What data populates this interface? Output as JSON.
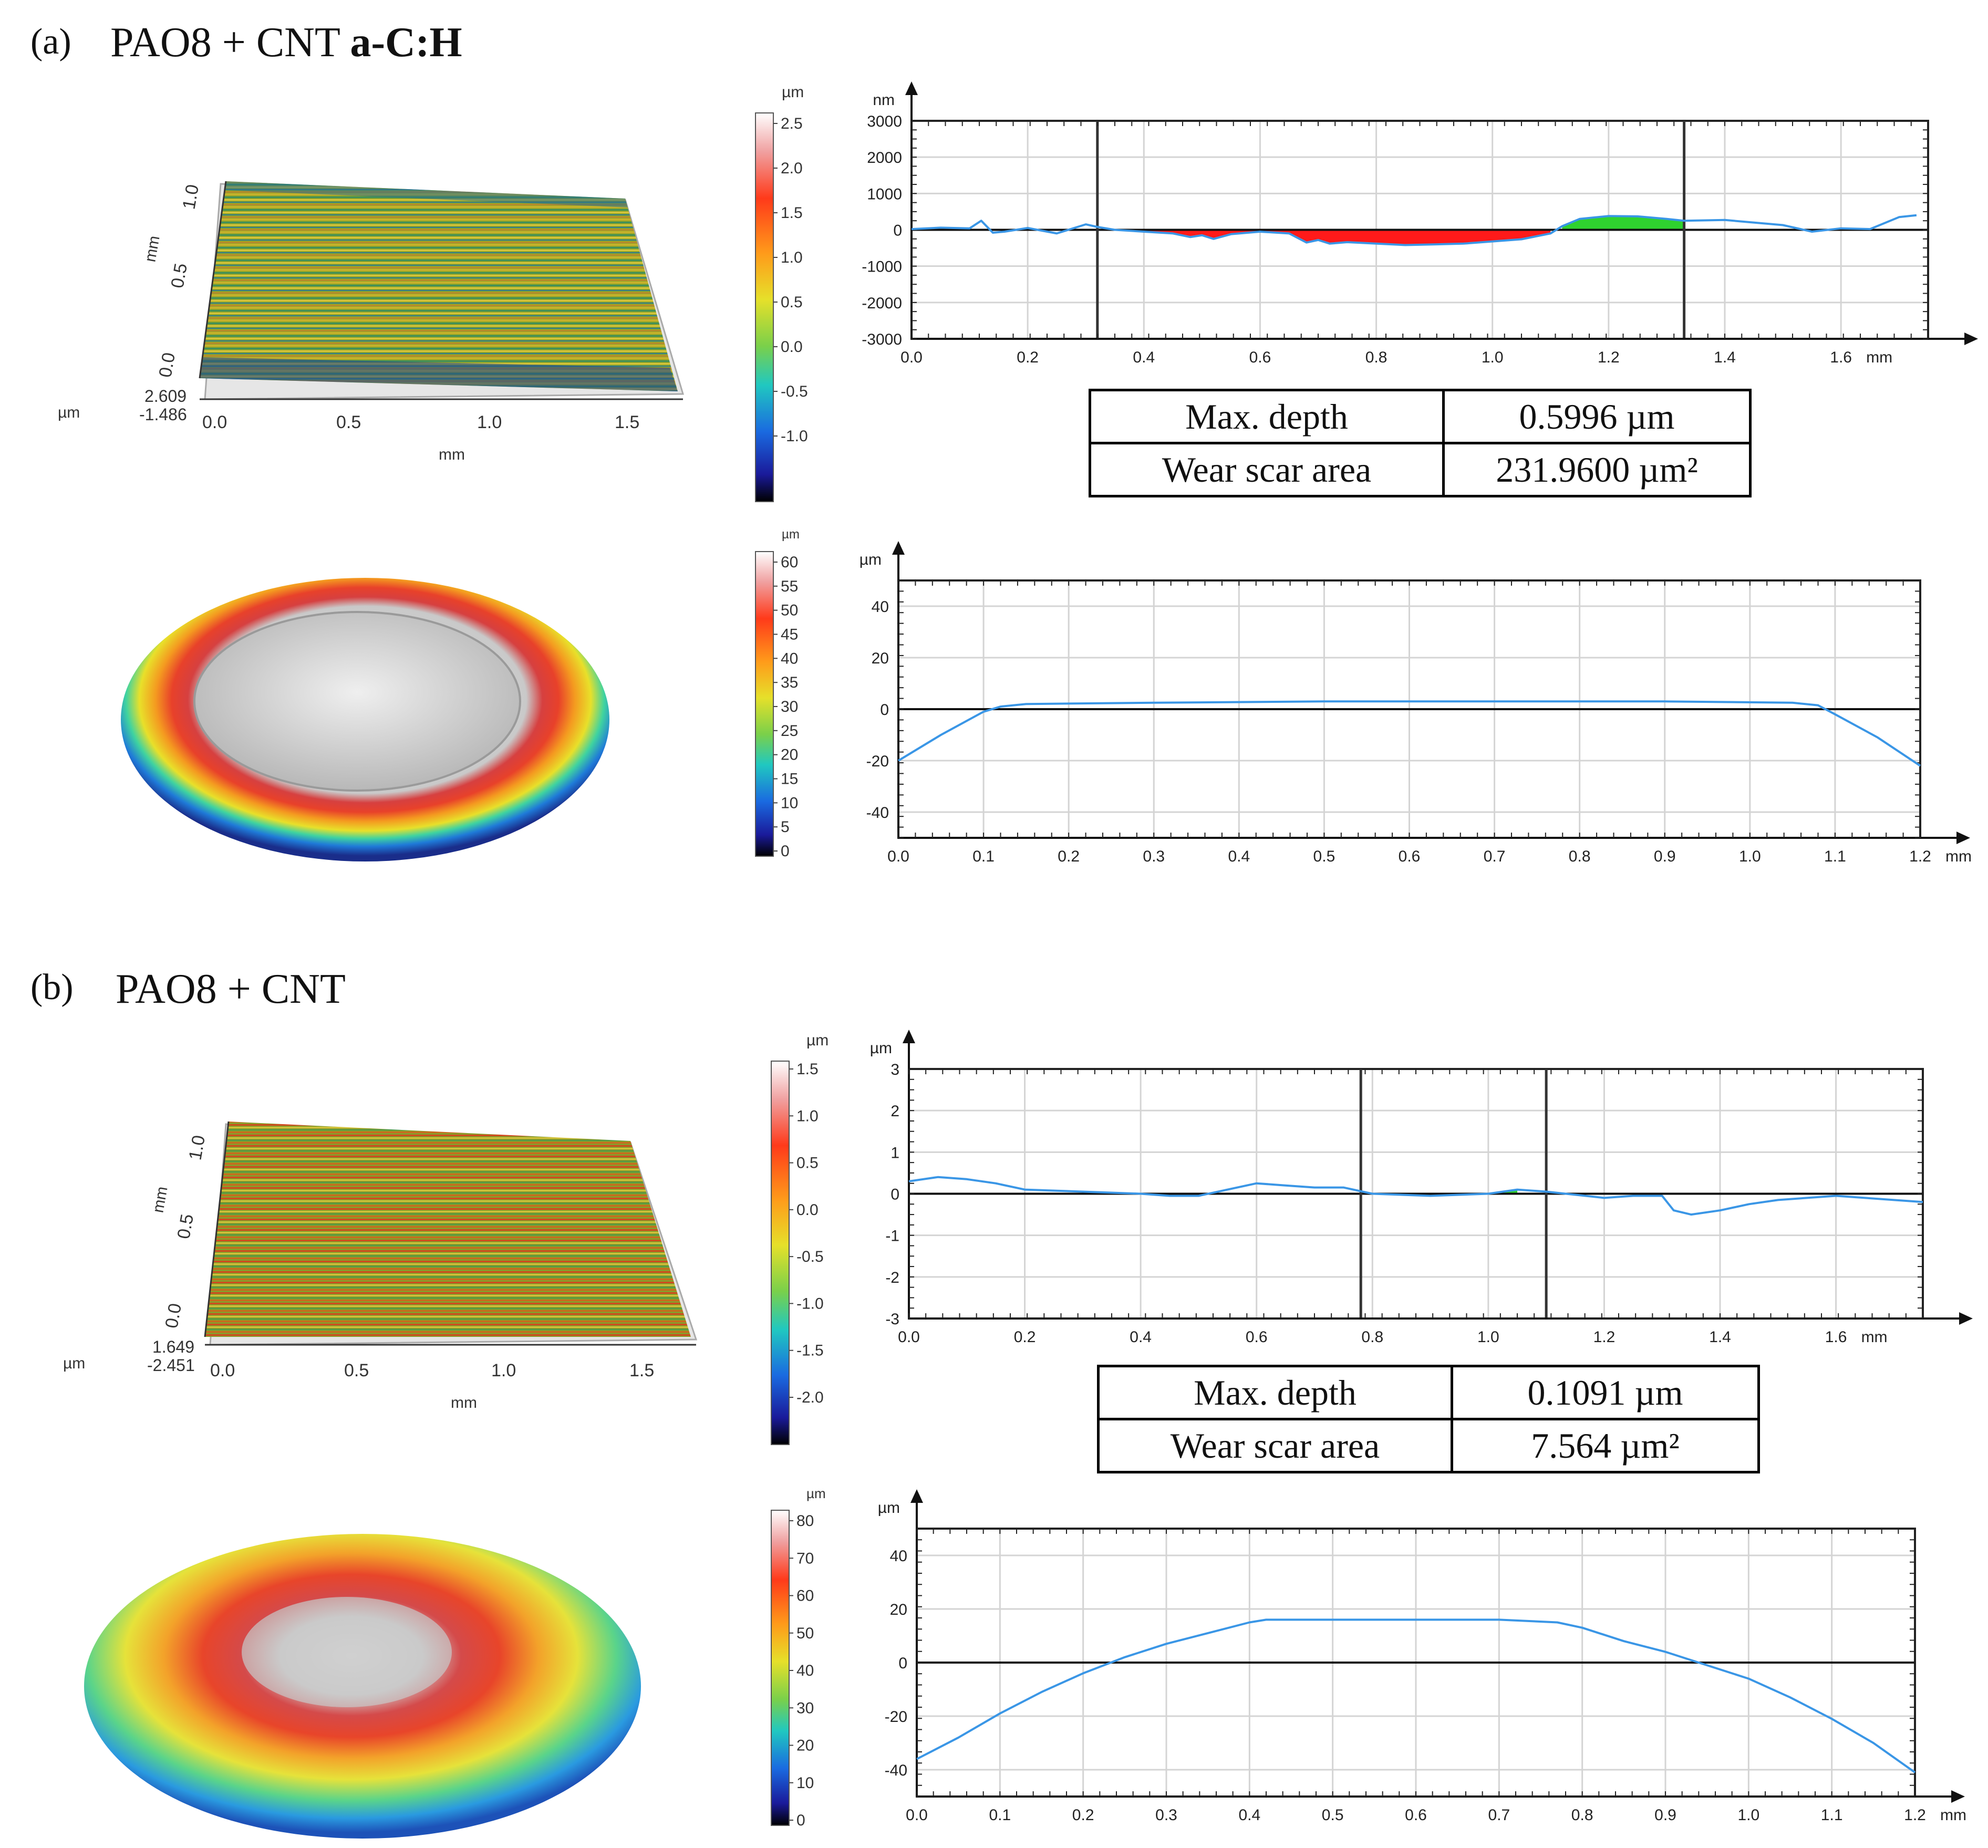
{
  "panel_a": {
    "label": "(a)",
    "title_plain": "PAO8 + CNT ",
    "title_bold": "a-C:H",
    "topo3d": {
      "x_unit": "mm",
      "y_unit": "mm",
      "z_unit": "µm",
      "x_ticks": [
        "0.0",
        "0.5",
        "1.0",
        "1.5"
      ],
      "y_ticks": [
        "0.0",
        "0.5",
        "1.0"
      ],
      "z_max": "2.609",
      "z_min": "-1.486"
    },
    "colorbar_top": {
      "unit": "µm",
      "ticks": [
        "2.5",
        "2.0",
        "1.5",
        "1.0",
        "0.5",
        "0.0",
        "-0.5",
        "-1.0"
      ]
    },
    "colorbar_bottom": {
      "unit": "µm",
      "ticks": [
        "60",
        "55",
        "50",
        "45",
        "40",
        "35",
        "30",
        "25",
        "20",
        "15",
        "10",
        "5",
        "0"
      ]
    },
    "results": {
      "depth_label": "Max. depth",
      "depth_value": "0.5996 µm",
      "area_label": "Wear scar area",
      "area_value": "231.9600 µm²"
    }
  },
  "panel_b": {
    "label": "(b)",
    "title_plain": "PAO8 + CNT",
    "title_bold": "",
    "topo3d": {
      "x_unit": "mm",
      "y_unit": "mm",
      "z_unit": "µm",
      "x_ticks": [
        "0.0",
        "0.5",
        "1.0",
        "1.5"
      ],
      "y_ticks": [
        "0.0",
        "0.5",
        "1.0"
      ],
      "z_max": "1.649",
      "z_min": "-2.451"
    },
    "colorbar_top": {
      "unit": "µm",
      "ticks": [
        "1.5",
        "1.0",
        "0.5",
        "0.0",
        "-0.5",
        "-1.0",
        "-1.5",
        "-2.0"
      ]
    },
    "colorbar_bottom": {
      "unit": "µm",
      "ticks": [
        "80",
        "70",
        "60",
        "50",
        "40",
        "30",
        "20",
        "10",
        "0"
      ]
    },
    "results": {
      "depth_label": "Max. depth",
      "depth_value": "0.1091 µm",
      "area_label": "Wear scar area",
      "area_value": "7.564 µm²"
    }
  },
  "chart_data": [
    {
      "id": "a-wear-track-profile",
      "type": "line",
      "xlabel": "mm",
      "ylabel": "nm",
      "xlim": [
        0,
        1.75
      ],
      "ylim": [
        -3000,
        3000
      ],
      "x_ticks": [
        0.0,
        0.2,
        0.4,
        0.6,
        0.8,
        1.0,
        1.2,
        1.4,
        1.6
      ],
      "y_ticks": [
        3000,
        2000,
        1000,
        0,
        -1000,
        -2000,
        -3000
      ],
      "cursor_lines": [
        0.32,
        1.33
      ],
      "series": [
        {
          "name": "profile",
          "x": [
            0.0,
            0.05,
            0.1,
            0.12,
            0.14,
            0.16,
            0.2,
            0.25,
            0.3,
            0.32,
            0.35,
            0.4,
            0.45,
            0.48,
            0.5,
            0.52,
            0.55,
            0.6,
            0.65,
            0.68,
            0.7,
            0.72,
            0.75,
            0.8,
            0.85,
            0.9,
            0.95,
            1.0,
            1.05,
            1.1,
            1.12,
            1.15,
            1.2,
            1.25,
            1.3,
            1.33,
            1.4,
            1.5,
            1.55,
            1.6,
            1.65,
            1.7,
            1.73
          ],
          "y": [
            20,
            60,
            40,
            250,
            -80,
            -50,
            50,
            -100,
            150,
            80,
            0,
            -50,
            -100,
            -200,
            -150,
            -250,
            -120,
            -50,
            -100,
            -350,
            -280,
            -380,
            -340,
            -380,
            -420,
            -400,
            -380,
            -320,
            -260,
            -100,
            100,
            300,
            380,
            370,
            300,
            250,
            270,
            130,
            -50,
            40,
            20,
            350,
            400
          ]
        }
      ],
      "fill_bands": [
        {
          "kind": "removed",
          "color": "#ff1a1a",
          "x_range": [
            0.38,
            1.1
          ]
        },
        {
          "kind": "added",
          "color": "#2fd22f",
          "x_range": [
            1.12,
            1.33
          ]
        }
      ]
    },
    {
      "id": "a-ball-profile",
      "type": "line",
      "xlabel": "mm",
      "ylabel": "µm",
      "xlim": [
        0,
        1.2
      ],
      "ylim": [
        -50,
        50
      ],
      "x_ticks": [
        0.0,
        0.1,
        0.2,
        0.3,
        0.4,
        0.5,
        0.6,
        0.7,
        0.8,
        0.9,
        1.0,
        1.1,
        1.2
      ],
      "y_ticks": [
        40,
        20,
        0,
        -20,
        -40
      ],
      "series": [
        {
          "name": "profile",
          "x": [
            0.0,
            0.05,
            0.1,
            0.12,
            0.15,
            0.3,
            0.5,
            0.7,
            0.9,
            1.05,
            1.08,
            1.1,
            1.15,
            1.2
          ],
          "y": [
            -20,
            -10,
            -1,
            1,
            2,
            2.5,
            3,
            3,
            3,
            2.5,
            1.5,
            -2,
            -11,
            -22
          ]
        }
      ]
    },
    {
      "id": "b-wear-track-profile",
      "type": "line",
      "xlabel": "mm",
      "ylabel": "µm",
      "xlim": [
        0,
        1.75
      ],
      "ylim": [
        -3,
        3
      ],
      "x_ticks": [
        0.0,
        0.2,
        0.4,
        0.6,
        0.8,
        1.0,
        1.2,
        1.4,
        1.6
      ],
      "y_ticks": [
        3,
        2,
        1,
        0,
        -1,
        -2,
        -3
      ],
      "cursor_lines": [
        0.78,
        1.1
      ],
      "series": [
        {
          "name": "profile",
          "x": [
            0.0,
            0.05,
            0.1,
            0.15,
            0.2,
            0.3,
            0.4,
            0.45,
            0.5,
            0.55,
            0.6,
            0.65,
            0.7,
            0.75,
            0.8,
            0.9,
            1.0,
            1.05,
            1.1,
            1.2,
            1.25,
            1.3,
            1.32,
            1.35,
            1.4,
            1.45,
            1.5,
            1.55,
            1.6,
            1.65,
            1.7,
            1.75
          ],
          "y": [
            0.3,
            0.4,
            0.35,
            0.25,
            0.1,
            0.05,
            0.0,
            -0.05,
            -0.05,
            0.1,
            0.25,
            0.2,
            0.15,
            0.15,
            0.0,
            -0.05,
            0.0,
            0.1,
            0.05,
            -0.1,
            -0.05,
            -0.05,
            -0.4,
            -0.5,
            -0.4,
            -0.25,
            -0.15,
            -0.1,
            -0.05,
            -0.1,
            -0.15,
            -0.2
          ]
        }
      ],
      "fill_bands": [
        {
          "kind": "added",
          "color": "#2fd22f",
          "x_range": [
            0.95,
            1.08
          ]
        }
      ]
    },
    {
      "id": "b-ball-profile",
      "type": "line",
      "xlabel": "mm",
      "ylabel": "µm",
      "xlim": [
        0,
        1.2
      ],
      "ylim": [
        -50,
        50
      ],
      "x_ticks": [
        0.0,
        0.1,
        0.2,
        0.3,
        0.4,
        0.5,
        0.6,
        0.7,
        0.8,
        0.9,
        1.0,
        1.1,
        1.2
      ],
      "y_ticks": [
        40,
        20,
        0,
        -20,
        -40
      ],
      "series": [
        {
          "name": "profile",
          "x": [
            0.0,
            0.05,
            0.1,
            0.15,
            0.2,
            0.25,
            0.3,
            0.35,
            0.4,
            0.42,
            0.5,
            0.6,
            0.7,
            0.77,
            0.8,
            0.85,
            0.9,
            0.95,
            1.0,
            1.05,
            1.1,
            1.15,
            1.2
          ],
          "y": [
            -36,
            -28,
            -19,
            -11,
            -4,
            2,
            7,
            11,
            15,
            16,
            16,
            16,
            16,
            15,
            13,
            8,
            4,
            -1,
            -6,
            -13,
            -21,
            -30,
            -41
          ]
        }
      ]
    }
  ]
}
